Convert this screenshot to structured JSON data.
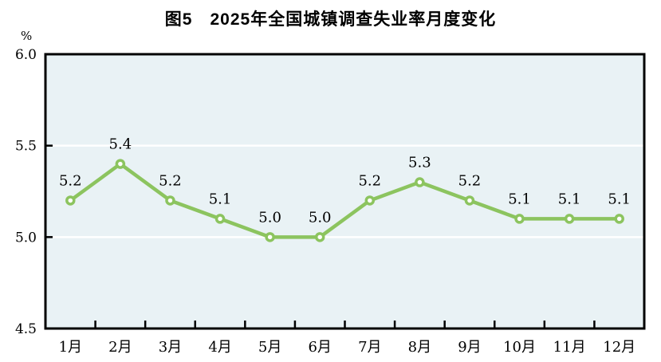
{
  "chart_data": {
    "type": "line",
    "title": "图5　2025年全国城镇调查失业率月度变化",
    "ylabel_unit": "%",
    "categories": [
      "1月",
      "2月",
      "3月",
      "4月",
      "5月",
      "6月",
      "7月",
      "8月",
      "9月",
      "10月",
      "11月",
      "12月"
    ],
    "series": [
      {
        "name": "全国城镇调查失业率",
        "values": [
          5.2,
          5.4,
          5.2,
          5.1,
          5.0,
          5.0,
          5.2,
          5.3,
          5.2,
          5.1,
          5.1,
          5.1
        ],
        "data_labels": [
          "5.2",
          "5.4",
          "5.2",
          "5.1",
          "5.0",
          "5.0",
          "5.2",
          "5.3",
          "5.2",
          "5.1",
          "5.1",
          "5.1"
        ]
      }
    ],
    "ylim": [
      4.5,
      6.0
    ],
    "yticks": [
      {
        "value": 6.0,
        "label": "6.0"
      },
      {
        "value": 5.5,
        "label": "5.5"
      },
      {
        "value": 5.0,
        "label": "5.0"
      },
      {
        "value": 4.5,
        "label": "4.5"
      }
    ],
    "gridline_values": [
      5.5,
      5.0
    ],
    "grid": true,
    "legend": false,
    "colors": {
      "line": "#8cc45f",
      "marker_fill": "#ffffff",
      "plot_bg": "#e9f2f5",
      "grid": "#ffffff",
      "axis": "#000000",
      "text": "#000000"
    }
  }
}
